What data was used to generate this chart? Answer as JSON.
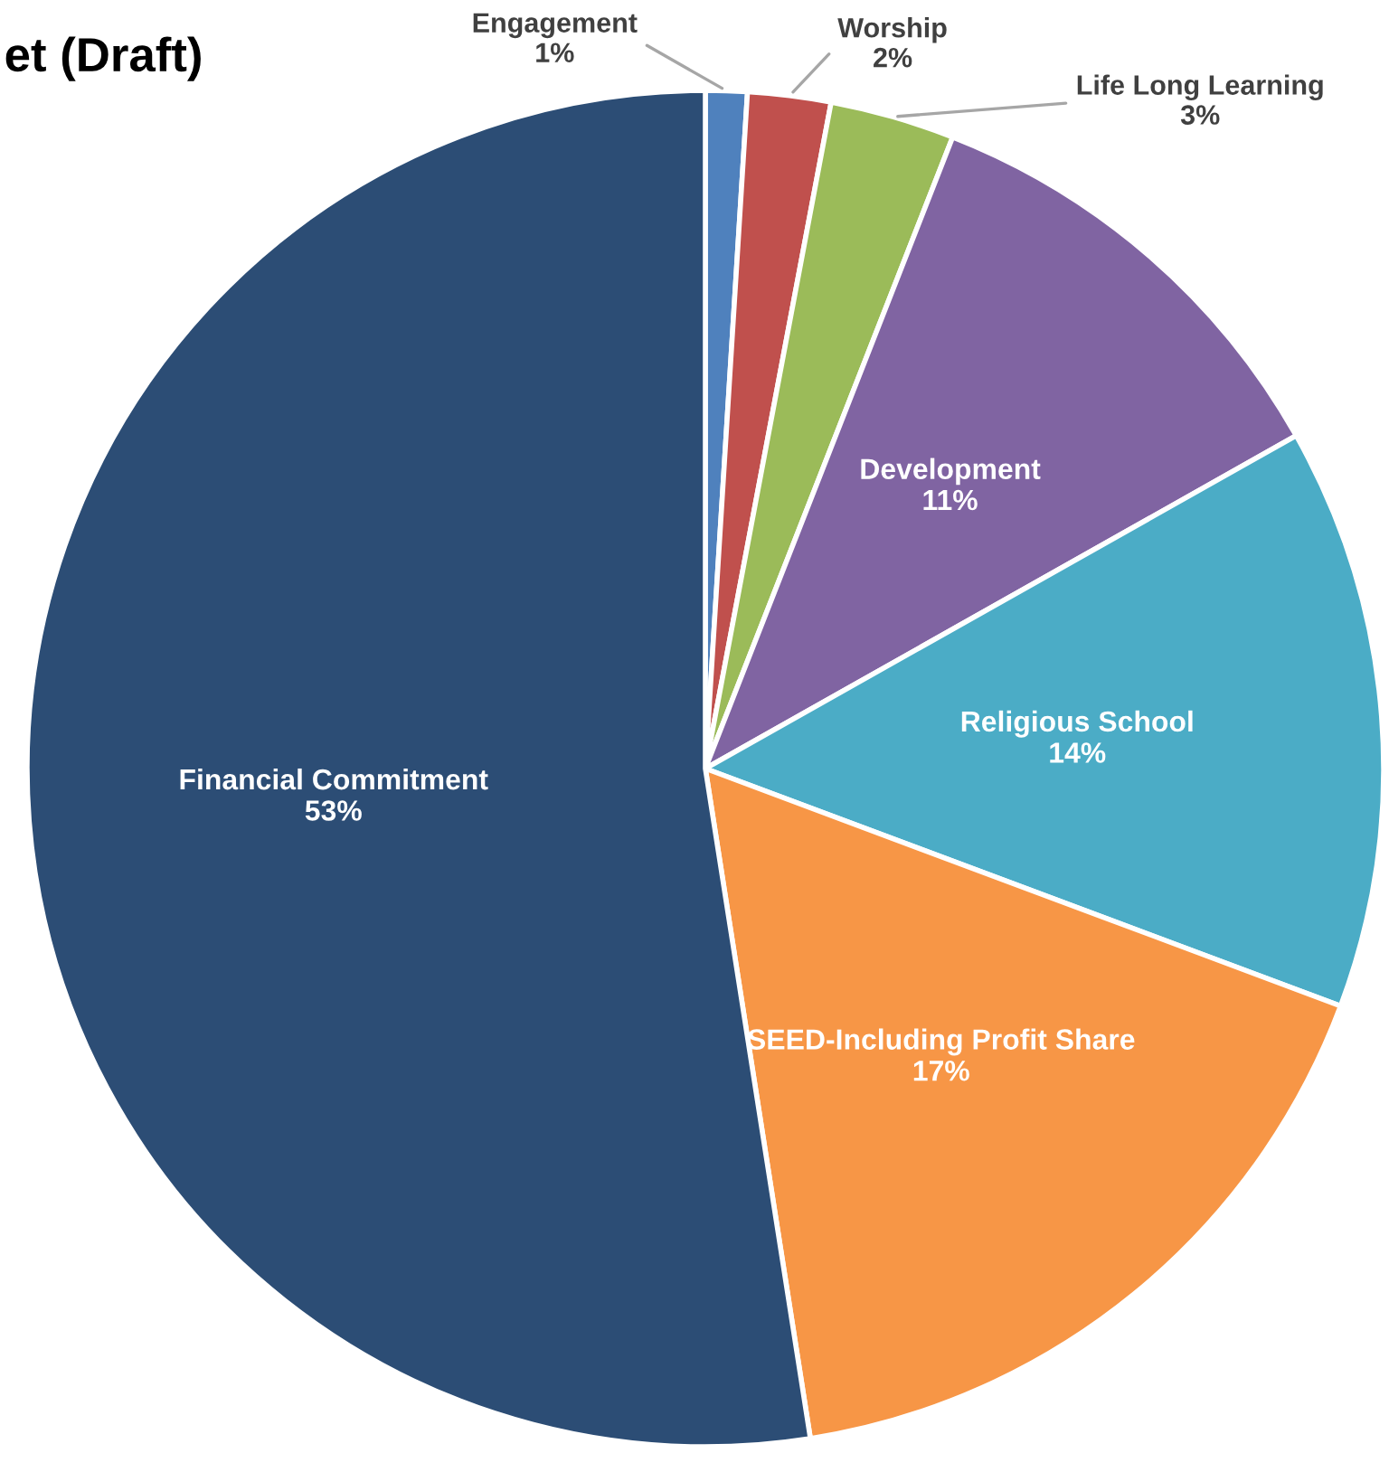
{
  "chart_data": {
    "type": "pie",
    "title": "et (Draft)",
    "categories": [
      "Engagement",
      "Worship",
      "Life Long Learning",
      "Development",
      "Religious School",
      "SEED-Including Profit Share",
      "Financial Commitment"
    ],
    "values": [
      1,
      2,
      3,
      11,
      14,
      17,
      53
    ],
    "value_labels": [
      "1%",
      "2%",
      "3%",
      "11%",
      "14%",
      "17%",
      "53%"
    ],
    "colors": [
      "#4f81bd",
      "#c0504d",
      "#9bbb59",
      "#8064a2",
      "#4bacc6",
      "#f79646",
      "#2c4d75"
    ],
    "legend": false
  }
}
